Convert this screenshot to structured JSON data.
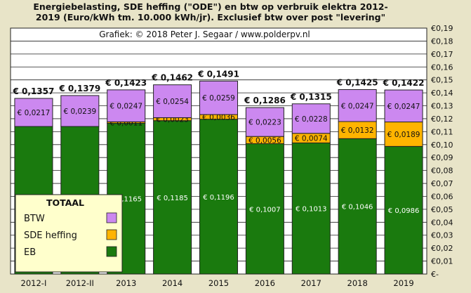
{
  "title_lines": [
    "Energiebelasting, SDE heffing (\"ODE\") en btw op verbruik elektra 2012-",
    "2019 (Euro/kWh tm. 10.000 kWh/jr). Exclusief btw over post \"levering\""
  ],
  "credit": "Grafiek: © 2018 Peter J. Segaar / www.polderpv.nl",
  "colors": {
    "background": "#e8e4c8",
    "plot_bg": "#ffffff",
    "eb": "#1a7a0e",
    "sde": "#ffb400",
    "btw": "#cc88f0",
    "legend_bg": "#ffffcc",
    "grid": "#222222"
  },
  "chart_data": {
    "type": "bar",
    "stacked": true,
    "categories": [
      "2012-I",
      "2012-II",
      "2013",
      "2014",
      "2015",
      "2016",
      "2017",
      "2018",
      "2019"
    ],
    "series": [
      {
        "name": "EB",
        "values": [
          0.114,
          0.114,
          0.1165,
          0.1185,
          0.1196,
          0.1007,
          0.1013,
          0.1046,
          0.0986
        ],
        "labels": [
          "€ 0,1140",
          "€ 0,1140",
          "€ 0,1165",
          "€ 0,1185",
          "€ 0,1196",
          "€ 0,1007",
          "€ 0,1013",
          "€ 0,1046",
          "€ 0,0986"
        ]
      },
      {
        "name": "SDE heffing",
        "values": [
          0,
          0,
          0.0011,
          0.0023,
          0.0036,
          0.0056,
          0.0074,
          0.0132,
          0.0189
        ],
        "labels": [
          "",
          "",
          "€ 0,0011",
          "€ 0,0023",
          "€ 0,0036",
          "€ 0,0056",
          "€ 0,0074",
          "€ 0,0132",
          "€ 0,0189"
        ]
      },
      {
        "name": "BTW",
        "values": [
          0.0217,
          0.0239,
          0.0247,
          0.0254,
          0.0259,
          0.0223,
          0.0228,
          0.0247,
          0.0247
        ],
        "labels": [
          "€ 0,0217",
          "€ 0,0239",
          "€ 0,0247",
          "€ 0,0254",
          "€ 0,0259",
          "€ 0,0223",
          "€ 0,0228",
          "€ 0,0247",
          "€ 0,0247"
        ]
      }
    ],
    "totals": [
      0.1357,
      0.1379,
      0.1423,
      0.1462,
      0.1491,
      0.1286,
      0.1315,
      0.1425,
      0.1422
    ],
    "total_labels": [
      "€ 0,1357",
      "€ 0,1379",
      "€ 0,1423",
      "€ 0,1462",
      "€ 0,1491",
      "€ 0,1286",
      "€ 0,1315",
      "€ 0,1425",
      "€ 0,1422"
    ],
    "ylim": [
      0,
      0.19
    ],
    "y_ticks": [
      "€-",
      "€0,01",
      "€0,02",
      "€0,03",
      "€0,04",
      "€0,05",
      "€0,06",
      "€0,07",
      "€0,08",
      "€0,09",
      "€0,10",
      "€0,11",
      "€0,12",
      "€0,13",
      "€0,14",
      "€0,15",
      "€0,16",
      "€0,17",
      "€0,18",
      "€0,19"
    ],
    "y_axis_side": "right",
    "grid": true,
    "legend": {
      "title": "TOTAAL",
      "entries": [
        "BTW",
        "SDE heffing",
        "EB"
      ],
      "placement": "bottom-left"
    }
  }
}
